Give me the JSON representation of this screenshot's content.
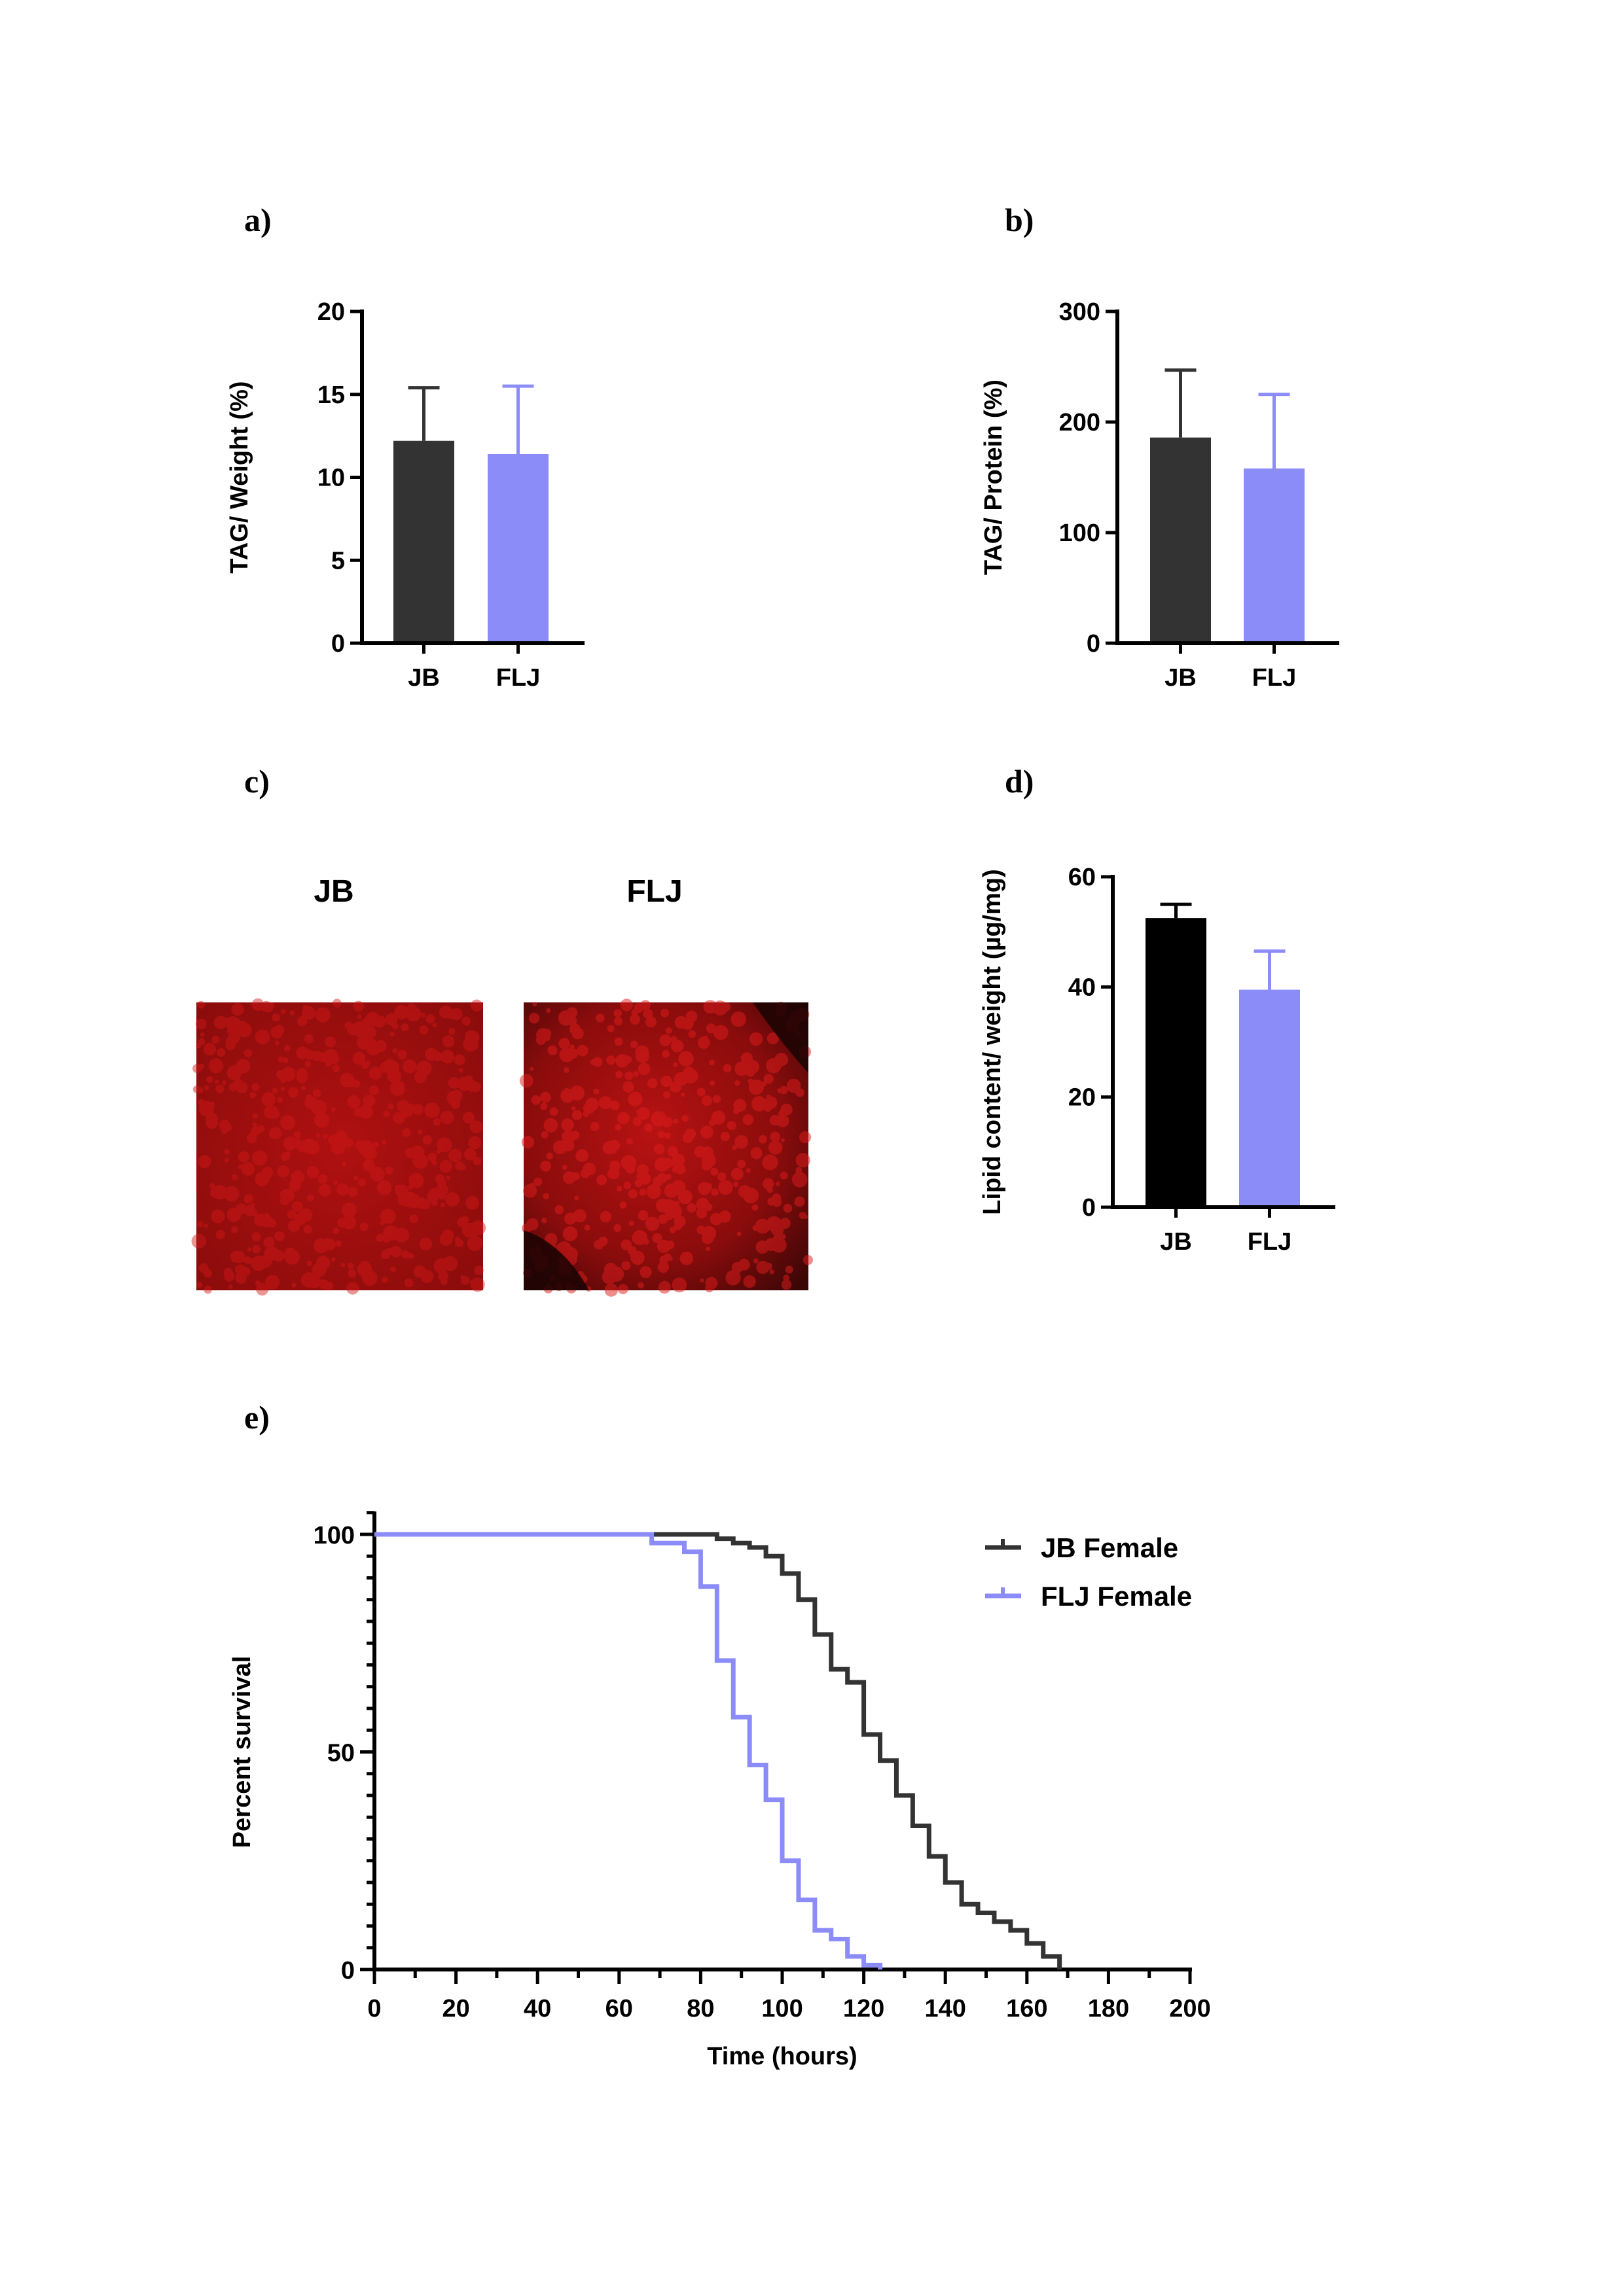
{
  "panels": {
    "a": "a)",
    "b": "b)",
    "c": "c)",
    "d": "d)",
    "e": "e)"
  },
  "colors": {
    "JB": "#333333",
    "JB_d": "#000000",
    "FLJ": "#8c8cf8"
  },
  "microscopy": {
    "left_label": "JB",
    "right_label": "FLJ",
    "left_name": "jb-lipid-stain-image",
    "right_name": "flj-lipid-stain-image"
  },
  "chart_data": [
    {
      "id": "a",
      "type": "bar",
      "categories": [
        "JB",
        "FLJ"
      ],
      "values": [
        12.2,
        11.4
      ],
      "errors": [
        3.2,
        4.1
      ],
      "ylabel": "TAG/ Weight (%)",
      "ylim": [
        0,
        20
      ],
      "yticks": [
        0,
        5,
        10,
        15,
        20
      ],
      "title": "",
      "xlabel": ""
    },
    {
      "id": "b",
      "type": "bar",
      "categories": [
        "JB",
        "FLJ"
      ],
      "values": [
        186,
        158
      ],
      "errors": [
        61,
        67
      ],
      "ylabel": "TAG/ Protein (%)",
      "ylim": [
        0,
        300
      ],
      "yticks": [
        0,
        100,
        200,
        300
      ],
      "title": "",
      "xlabel": ""
    },
    {
      "id": "d",
      "type": "bar",
      "categories": [
        "JB",
        "FLJ"
      ],
      "values": [
        52.5,
        39.5
      ],
      "errors": [
        2.5,
        7
      ],
      "ylabel": "Lipid content/ weight (µg/mg)",
      "ylim": [
        0,
        60
      ],
      "yticks": [
        0,
        20,
        40,
        60
      ],
      "title": "",
      "xlabel": ""
    },
    {
      "id": "e",
      "type": "line",
      "step": true,
      "xlabel": "Time (hours)",
      "ylabel": "Percent survival",
      "xlim": [
        0,
        200
      ],
      "ylim": [
        0,
        100
      ],
      "xticks": [
        0,
        20,
        40,
        60,
        80,
        100,
        120,
        140,
        160,
        180,
        200
      ],
      "yticks": [
        0,
        50,
        100
      ],
      "legend_position": "top-right",
      "series": [
        {
          "name": "JB Female",
          "x": [
            0,
            84,
            88,
            92,
            96,
            100,
            104,
            108,
            112,
            116,
            120,
            124,
            128,
            132,
            136,
            140,
            144,
            148,
            152,
            156,
            160,
            164,
            168
          ],
          "y": [
            100,
            99,
            98,
            97,
            95,
            91,
            85,
            77,
            69,
            66,
            54,
            48,
            40,
            33,
            26,
            20,
            15,
            13,
            11,
            9,
            6,
            3,
            0
          ]
        },
        {
          "name": "FLJ Female",
          "x": [
            0,
            68,
            76,
            80,
            84,
            88,
            92,
            96,
            100,
            104,
            108,
            112,
            116,
            120,
            124
          ],
          "y": [
            100,
            98,
            96,
            88,
            71,
            58,
            47,
            39,
            25,
            16,
            9,
            7,
            3,
            1,
            0
          ]
        }
      ]
    }
  ]
}
